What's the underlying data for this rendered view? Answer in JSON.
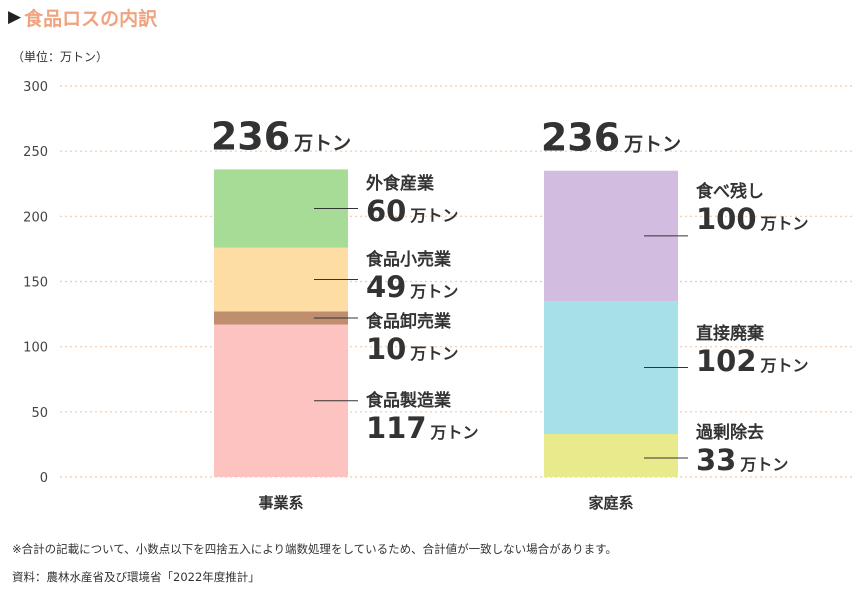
{
  "header": {
    "marker": "▶",
    "title": "食品ロスの内訳"
  },
  "unit_label": "（単位：万トン）",
  "chart_data": {
    "type": "bar",
    "stacked": true,
    "title": "食品ロスの内訳",
    "ylabel": "（単位：万トン）",
    "ylim": [
      0,
      300
    ],
    "yticks": [
      0,
      50,
      100,
      150,
      200,
      250,
      300
    ],
    "categories": [
      "事業系",
      "家庭系"
    ],
    "totals": [
      {
        "value": "236",
        "unit": "万トン"
      },
      {
        "value": "236",
        "unit": "万トン"
      }
    ],
    "stacks": [
      {
        "category": "事業系",
        "segments": [
          {
            "name": "食品製造業",
            "value": 117,
            "unit": "万トン",
            "color": "#fdc3c0"
          },
          {
            "name": "食品卸売業",
            "value": 10,
            "unit": "万トン",
            "color": "#bf8e6e"
          },
          {
            "name": "食品小売業",
            "value": 49,
            "unit": "万トン",
            "color": "#fddda4"
          },
          {
            "name": "外食産業",
            "value": 60,
            "unit": "万トン",
            "color": "#a7dc96"
          }
        ]
      },
      {
        "category": "家庭系",
        "segments": [
          {
            "name": "過剰除去",
            "value": 33,
            "unit": "万トン",
            "color": "#e8ea8c"
          },
          {
            "name": "直接廃棄",
            "value": 102,
            "unit": "万トン",
            "color": "#a8e0e8"
          },
          {
            "name": "食べ残し",
            "value": 100,
            "unit": "万トン",
            "color": "#d2bde0"
          }
        ]
      }
    ],
    "grid": true,
    "grid_color": "#f3c9a8"
  },
  "footnotes": {
    "note": "※合計の記載について、小数点以下を四捨五入により端数処理をしているため、合計値が一致しない場合があります。",
    "source": "資料：農林水産省及び環境省「2022年度推計」"
  }
}
